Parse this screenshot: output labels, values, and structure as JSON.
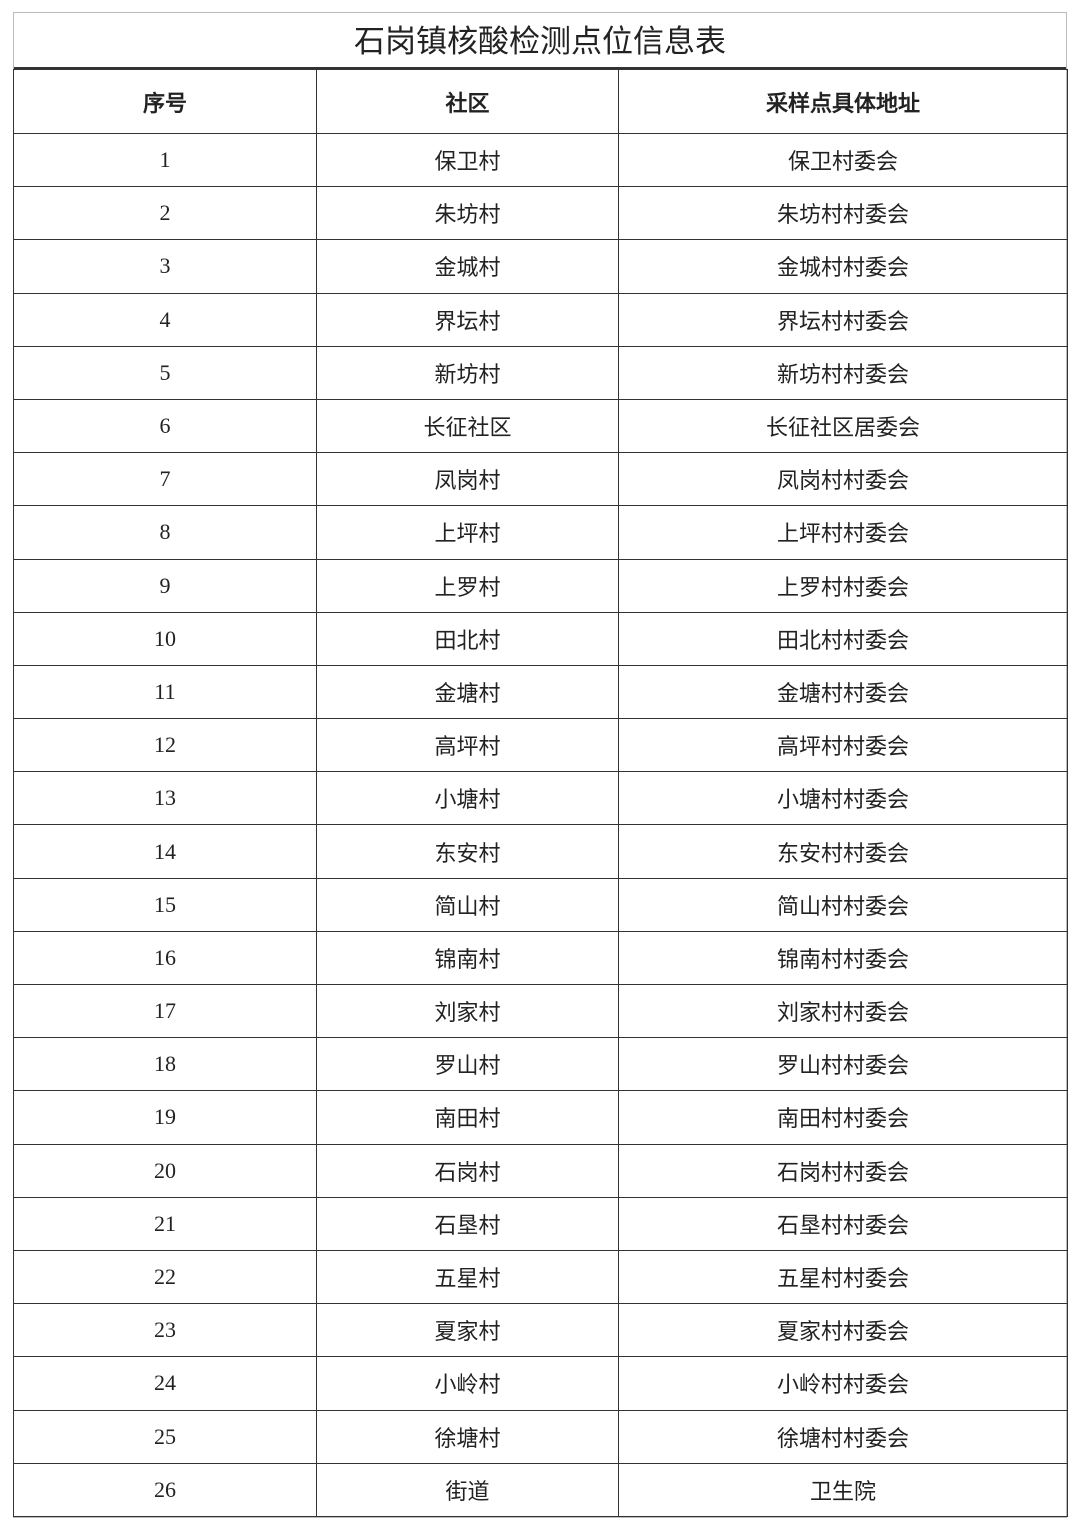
{
  "title": "石岗镇核酸检测点位信息表",
  "table": {
    "header": [
      "序号",
      "社区",
      "采样点具体地址"
    ],
    "rows": [
      [
        "1",
        "保卫村",
        "保卫村委会"
      ],
      [
        "2",
        "朱坊村",
        "朱坊村村委会"
      ],
      [
        "3",
        "金城村",
        "金城村村委会"
      ],
      [
        "4",
        "界坛村",
        "界坛村村委会"
      ],
      [
        "5",
        "新坊村",
        "新坊村村委会"
      ],
      [
        "6",
        "长征社区",
        "长征社区居委会"
      ],
      [
        "7",
        "凤岗村",
        "凤岗村村委会"
      ],
      [
        "8",
        "上坪村",
        "上坪村村委会"
      ],
      [
        "9",
        "上罗村",
        "上罗村村委会"
      ],
      [
        "10",
        "田北村",
        "田北村村委会"
      ],
      [
        "11",
        "金塘村",
        "金塘村村委会"
      ],
      [
        "12",
        "高坪村",
        "高坪村村委会"
      ],
      [
        "13",
        "小塘村",
        "小塘村村委会"
      ],
      [
        "14",
        "东安村",
        "东安村村委会"
      ],
      [
        "15",
        "简山村",
        "简山村村委会"
      ],
      [
        "16",
        "锦南村",
        "锦南村村委会"
      ],
      [
        "17",
        "刘家村",
        "刘家村村委会"
      ],
      [
        "18",
        "罗山村",
        "罗山村村委会"
      ],
      [
        "19",
        "南田村",
        "南田村村委会"
      ],
      [
        "20",
        "石岗村",
        "石岗村村委会"
      ],
      [
        "21",
        "石垦村",
        "石垦村村委会"
      ],
      [
        "22",
        "五星村",
        "五星村村委会"
      ],
      [
        "23",
        "夏家村",
        "夏家村村委会"
      ],
      [
        "24",
        "小岭村",
        "小岭村村委会"
      ],
      [
        "25",
        "徐塘村",
        "徐塘村村委会"
      ],
      [
        "26",
        "街道",
        "卫生院"
      ]
    ]
  }
}
